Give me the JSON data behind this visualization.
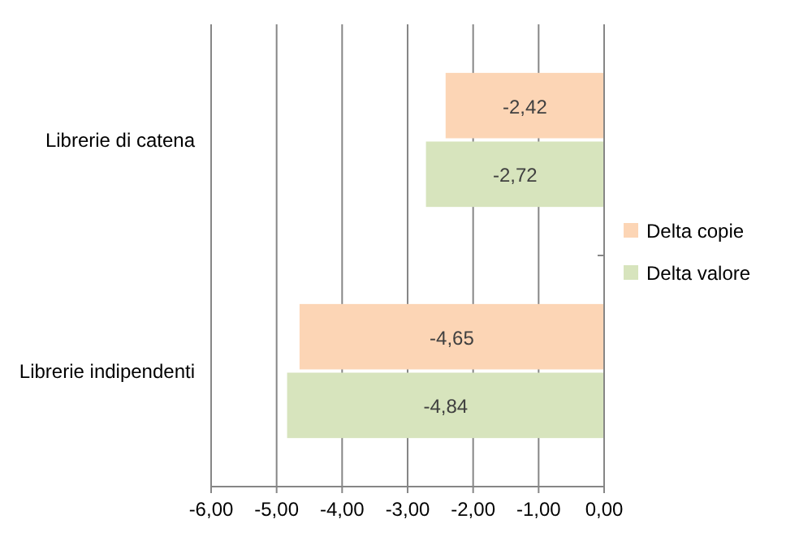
{
  "chart_data": {
    "type": "bar",
    "orientation": "horizontal",
    "categories": [
      "Librerie di catena",
      "Librerie indipendenti"
    ],
    "series": [
      {
        "name": "Delta copie",
        "color": "#fcd5b5",
        "values": [
          -2.42,
          -4.65
        ],
        "value_labels": [
          "-2,42",
          "-4,65"
        ]
      },
      {
        "name": "Delta valore",
        "color": "#d7e4bd",
        "values": [
          -2.72,
          -4.84
        ],
        "value_labels": [
          "-2,72",
          "-4,84"
        ]
      }
    ],
    "xlim": [
      -6,
      0
    ],
    "xticks": [
      {
        "value": -6,
        "label": "-6,00"
      },
      {
        "value": -5,
        "label": "-5,00"
      },
      {
        "value": -4,
        "label": "-4,00"
      },
      {
        "value": -3,
        "label": "-3,00"
      },
      {
        "value": -2,
        "label": "-2,00"
      },
      {
        "value": -1,
        "label": "-1,00"
      },
      {
        "value": 0,
        "label": "0,00"
      }
    ],
    "grid": "x",
    "legend": "right"
  }
}
